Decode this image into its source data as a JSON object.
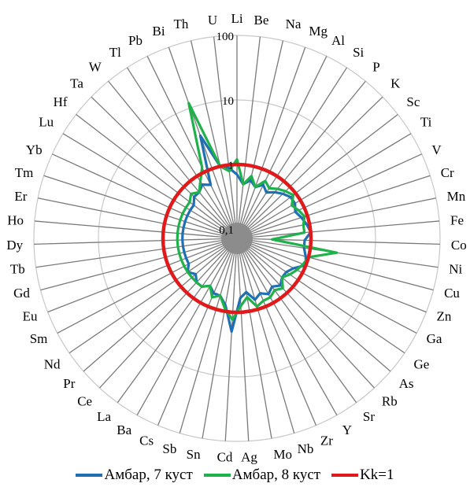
{
  "chart_data": {
    "type": "radar",
    "scale": "log",
    "range": [
      0.1,
      100
    ],
    "grid": true,
    "tick_labels": [
      "0,1",
      "1",
      "10",
      "100"
    ],
    "categories": [
      "Li",
      "Be",
      "Na",
      "Mg",
      "Al",
      "Si",
      "P",
      "K",
      "Sc",
      "Ti",
      "V",
      "Cr",
      "Mn",
      "Fe",
      "Co",
      "Ni",
      "Cu",
      "Zn",
      "Ga",
      "Ge",
      "As",
      "Rb",
      "Sr",
      "Y",
      "Zr",
      "Nb",
      "Mo",
      "Ag",
      "Cd",
      "Sn",
      "Sb",
      "Cs",
      "Ba",
      "La",
      "Ce",
      "Pr",
      "Nd",
      "Sm",
      "Eu",
      "Gd",
      "Tb",
      "Dy",
      "Ho",
      "Er",
      "Tm",
      "Yb",
      "Lu",
      "Hf",
      "Ta",
      "W",
      "Tl",
      "Pb",
      "Bi",
      "Th",
      "U"
    ],
    "series": [
      {
        "name": "Амбар, 7 куст",
        "color": "#1f6fb4",
        "values": [
          0.7,
          0.5,
          0.6,
          0.5,
          0.6,
          0.5,
          0.6,
          0.7,
          0.8,
          0.8,
          0.7,
          0.8,
          0.9,
          1.0,
          0.8,
          0.8,
          0.9,
          1.0,
          0.7,
          0.6,
          0.6,
          0.7,
          0.6,
          0.7,
          0.6,
          0.7,
          0.5,
          0.6,
          2.0,
          0.8,
          0.6,
          0.6,
          0.5,
          0.6,
          0.6,
          0.5,
          0.6,
          0.5,
          0.5,
          0.5,
          0.5,
          0.5,
          0.5,
          0.5,
          0.5,
          0.5,
          0.5,
          0.5,
          0.6,
          0.6,
          0.7,
          0.6,
          3.5,
          1.0,
          0.9
        ]
      },
      {
        "name": "Амбар, 8 куст",
        "color": "#1fb14a",
        "values": [
          1.2,
          0.5,
          0.7,
          0.5,
          0.7,
          0.6,
          0.7,
          0.8,
          0.9,
          0.7,
          0.8,
          0.9,
          0.8,
          0.8,
          0.25,
          2.6,
          1.0,
          0.9,
          0.8,
          0.7,
          0.6,
          0.8,
          0.7,
          0.8,
          0.8,
          0.9,
          0.6,
          0.8,
          1.3,
          0.9,
          0.6,
          0.7,
          0.5,
          0.6,
          0.6,
          0.6,
          0.6,
          0.6,
          0.6,
          0.6,
          0.6,
          0.6,
          0.6,
          0.6,
          0.6,
          0.6,
          0.6,
          0.6,
          0.7,
          0.6,
          0.8,
          1.2,
          12.0,
          1.0,
          0.8
        ]
      },
      {
        "name": "Kk=1",
        "color": "#e0191b",
        "values": [
          1,
          1,
          1,
          1,
          1,
          1,
          1,
          1,
          1,
          1,
          1,
          1,
          1,
          1,
          1,
          1,
          1,
          1,
          1,
          1,
          1,
          1,
          1,
          1,
          1,
          1,
          1,
          1,
          1,
          1,
          1,
          1,
          1,
          1,
          1,
          1,
          1,
          1,
          1,
          1,
          1,
          1,
          1,
          1,
          1,
          1,
          1,
          1,
          1,
          1,
          1,
          1,
          1,
          1,
          1
        ]
      }
    ],
    "legend_position": "bottom"
  }
}
